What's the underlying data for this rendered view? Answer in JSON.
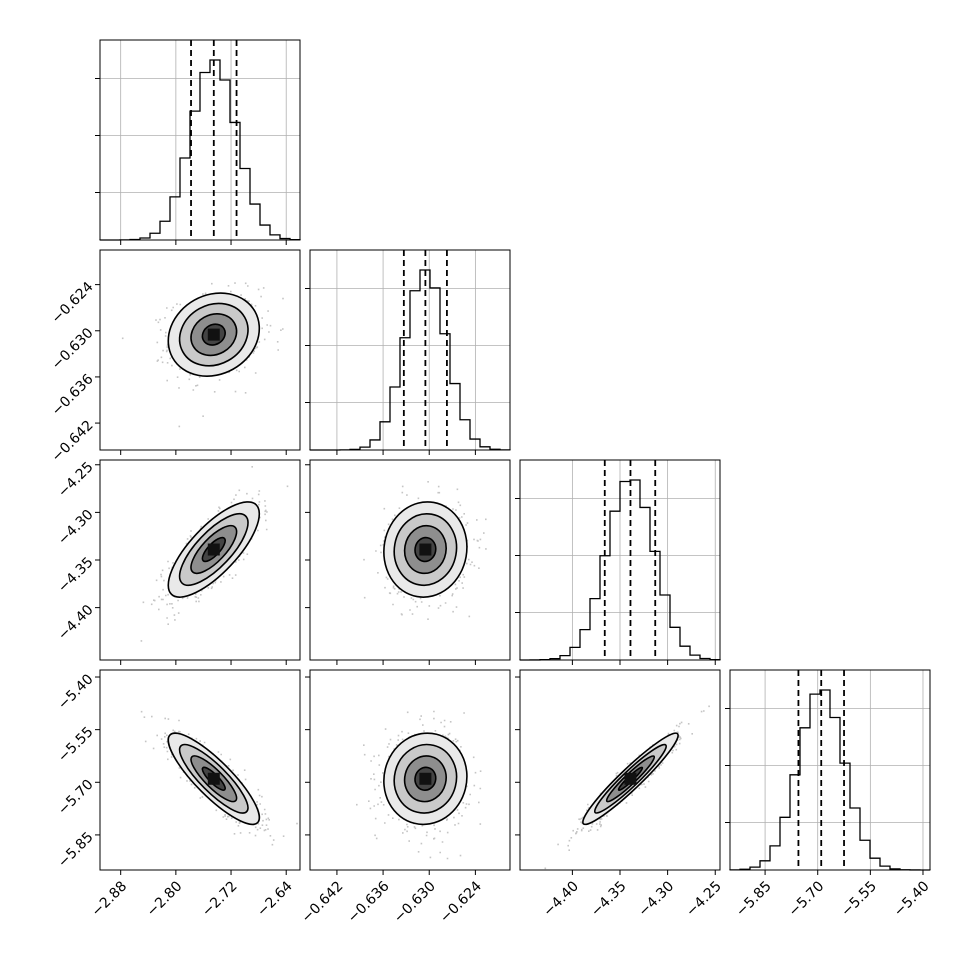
{
  "chart_data": {
    "type": "corner",
    "title": "",
    "params": [
      {
        "range": [
          -2.91,
          -2.62
        ],
        "ticks": [
          "-2.88",
          "-2.80",
          "-2.72",
          "-2.64"
        ],
        "tick_values": [
          -2.88,
          -2.8,
          -2.72,
          -2.64
        ],
        "mean": -2.745,
        "sd": 0.033,
        "quantiles": [
          -2.778,
          -2.745,
          -2.712
        ]
      },
      {
        "range": [
          -0.6455,
          -0.6195
        ],
        "ticks": [
          "-0.642",
          "-0.636",
          "-0.630",
          "-0.624"
        ],
        "tick_values": [
          -0.642,
          -0.636,
          -0.63,
          -0.624
        ],
        "mean": -0.6305,
        "sd": 0.0027,
        "quantiles": [
          -0.6333,
          -0.6305,
          -0.6277
        ]
      },
      {
        "range": [
          -4.455,
          -4.245
        ],
        "ticks": [
          "-4.25",
          "-4.30",
          "-4.35",
          "-4.40"
        ],
        "tick_values": [
          -4.25,
          -4.3,
          -4.35,
          -4.4
        ],
        "mean": -4.339,
        "sd": 0.025,
        "quantiles": [
          -4.366,
          -4.339,
          -4.313
        ]
      },
      {
        "range": [
          -5.95,
          -5.38
        ],
        "ticks": [
          "-5.85",
          "-5.70",
          "-5.55",
          "-5.40"
        ],
        "tick_values": [
          -5.85,
          -5.7,
          -5.55,
          -5.4
        ],
        "mean": -5.69,
        "sd": 0.065,
        "quantiles": [
          -5.755,
          -5.69,
          -5.625
        ]
      }
    ],
    "correlations": [
      [
        1.0,
        0.15,
        0.75,
        -0.85
      ],
      [
        0.15,
        1.0,
        0.05,
        0.05
      ],
      [
        0.75,
        0.05,
        1.0,
        0.95
      ],
      [
        -0.85,
        0.05,
        0.95,
        1.0
      ]
    ],
    "contour_levels_sigma": [
      0.5,
      1.0,
      1.5,
      2.0
    ],
    "histogram_bins": 20,
    "grid": true
  }
}
